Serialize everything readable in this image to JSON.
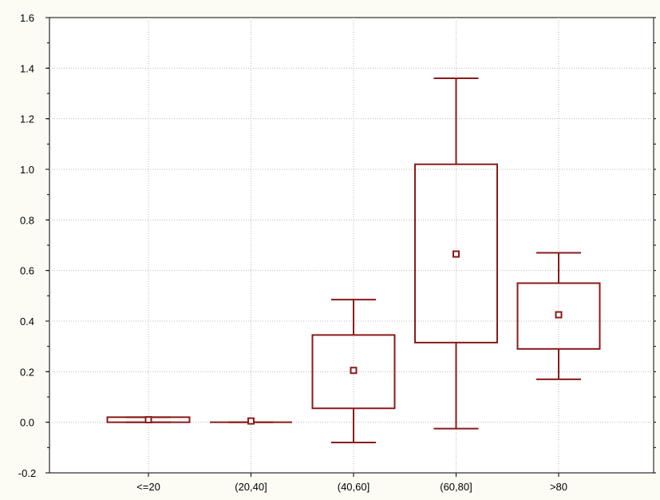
{
  "chart_data": {
    "type": "box",
    "title": "",
    "xlabel": "",
    "ylabel": "",
    "categories": [
      "<=20",
      "(20,40]",
      "(40,60]",
      "(60,80]",
      ">80"
    ],
    "boxes": [
      {
        "category": "<=20",
        "whisker_low": 0.0,
        "q1": 0.0,
        "mean": 0.01,
        "q3": 0.02,
        "whisker_high": 0.02
      },
      {
        "category": "(20,40]",
        "whisker_low": 0.0,
        "q1": 0.0,
        "mean": 0.005,
        "q3": 0.0,
        "whisker_high": 0.0
      },
      {
        "category": "(40,60]",
        "whisker_low": -0.08,
        "q1": 0.055,
        "mean": 0.205,
        "q3": 0.345,
        "whisker_high": 0.485
      },
      {
        "category": "(60,80]",
        "whisker_low": -0.025,
        "q1": 0.315,
        "mean": 0.665,
        "q3": 1.02,
        "whisker_high": 1.36
      },
      {
        "category": ">80",
        "whisker_low": 0.17,
        "q1": 0.29,
        "mean": 0.425,
        "q3": 0.55,
        "whisker_high": 0.67
      }
    ],
    "y_ticks": [
      "1.6",
      "1.4",
      "1.2",
      "1.0",
      "0.8",
      "0.6",
      "0.4",
      "0.2",
      "0.0",
      "-0.2"
    ],
    "y_tick_values": [
      1.6,
      1.4,
      1.2,
      1.0,
      0.8,
      0.6,
      0.4,
      0.2,
      0.0,
      -0.2
    ],
    "ylim": [
      -0.2,
      1.6
    ],
    "grid": true,
    "grid_style": "dotted",
    "colors": {
      "box_stroke": "#8b1a1a",
      "plot_background": "#ffffff",
      "page_background": "#fcfcf4",
      "grid": "#b8b8b8",
      "axis": "#000000"
    }
  }
}
